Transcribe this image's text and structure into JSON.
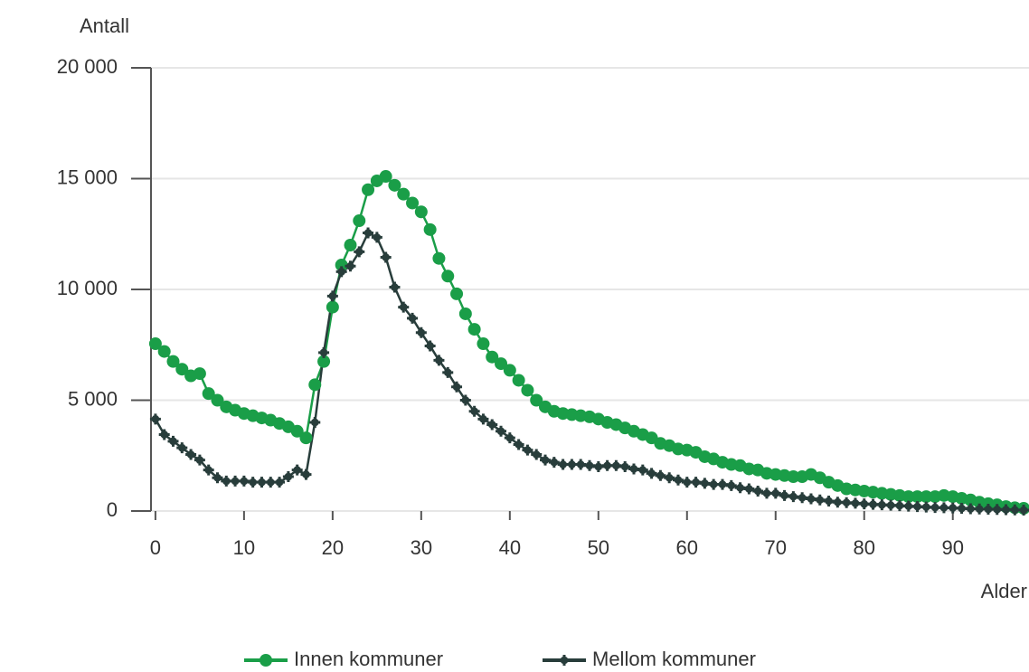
{
  "chart_data": {
    "type": "line",
    "y_axis_label": "Antall",
    "x_axis_label": "Alder",
    "x": [
      0,
      1,
      2,
      3,
      4,
      5,
      6,
      7,
      8,
      9,
      10,
      11,
      12,
      13,
      14,
      15,
      16,
      17,
      18,
      19,
      20,
      21,
      22,
      23,
      24,
      25,
      26,
      27,
      28,
      29,
      30,
      31,
      32,
      33,
      34,
      35,
      36,
      37,
      38,
      39,
      40,
      41,
      42,
      43,
      44,
      45,
      46,
      47,
      48,
      49,
      50,
      51,
      52,
      53,
      54,
      55,
      56,
      57,
      58,
      59,
      60,
      61,
      62,
      63,
      64,
      65,
      66,
      67,
      68,
      69,
      70,
      71,
      72,
      73,
      74,
      75,
      76,
      77,
      78,
      79,
      80,
      81,
      82,
      83,
      84,
      85,
      86,
      87,
      88,
      89,
      90,
      91,
      92,
      93,
      94,
      95,
      96,
      97,
      98
    ],
    "series": [
      {
        "name": "Innen kommuner",
        "color": "#1a9e48",
        "marker": "circle",
        "values": [
          7550,
          7200,
          6750,
          6400,
          6100,
          6200,
          5300,
          5000,
          4700,
          4550,
          4400,
          4300,
          4200,
          4100,
          3950,
          3800,
          3600,
          3300,
          5700,
          6750,
          9200,
          11100,
          12000,
          13100,
          14500,
          14900,
          15100,
          14700,
          14300,
          13900,
          13500,
          12700,
          11400,
          10600,
          9800,
          8900,
          8200,
          7550,
          6950,
          6650,
          6350,
          5900,
          5450,
          5000,
          4700,
          4500,
          4400,
          4350,
          4300,
          4250,
          4150,
          4000,
          3900,
          3750,
          3600,
          3450,
          3300,
          3050,
          2950,
          2800,
          2750,
          2650,
          2450,
          2350,
          2200,
          2100,
          2050,
          1900,
          1850,
          1700,
          1650,
          1600,
          1550,
          1550,
          1650,
          1500,
          1300,
          1150,
          1000,
          950,
          900,
          850,
          800,
          750,
          700,
          650,
          650,
          650,
          650,
          700,
          650,
          570,
          500,
          400,
          330,
          280,
          200,
          150,
          120
        ]
      },
      {
        "name": "Mellom kommuner",
        "color": "#283d3b",
        "marker": "star",
        "values": [
          4150,
          3450,
          3150,
          2850,
          2550,
          2300,
          1850,
          1500,
          1350,
          1350,
          1350,
          1300,
          1300,
          1300,
          1300,
          1550,
          1850,
          1650,
          4000,
          7150,
          9700,
          10800,
          11050,
          11700,
          12550,
          12350,
          11450,
          10100,
          9200,
          8700,
          8050,
          7450,
          6800,
          6250,
          5600,
          5000,
          4500,
          4150,
          3900,
          3600,
          3300,
          3000,
          2750,
          2550,
          2300,
          2200,
          2100,
          2100,
          2100,
          2050,
          2000,
          2050,
          2050,
          2000,
          1900,
          1850,
          1700,
          1600,
          1500,
          1400,
          1300,
          1300,
          1250,
          1200,
          1200,
          1150,
          1050,
          1000,
          900,
          800,
          800,
          700,
          650,
          600,
          550,
          500,
          450,
          400,
          380,
          350,
          320,
          300,
          280,
          260,
          240,
          220,
          200,
          180,
          160,
          150,
          140,
          120,
          100,
          90,
          80,
          70,
          60,
          50,
          40
        ]
      }
    ],
    "xlim": [
      -0.5,
      98.6
    ],
    "xticks": [
      0,
      10,
      20,
      30,
      40,
      50,
      60,
      70,
      80,
      90
    ],
    "ylim": [
      0,
      20000
    ],
    "yticks": [
      0,
      {
        "value": 5000,
        "label": "5 000"
      },
      {
        "value": 10000,
        "label": "10 000"
      },
      {
        "value": 15000,
        "label": "15 000"
      },
      {
        "value": 20000,
        "label": "20 000"
      }
    ],
    "grid": true
  }
}
